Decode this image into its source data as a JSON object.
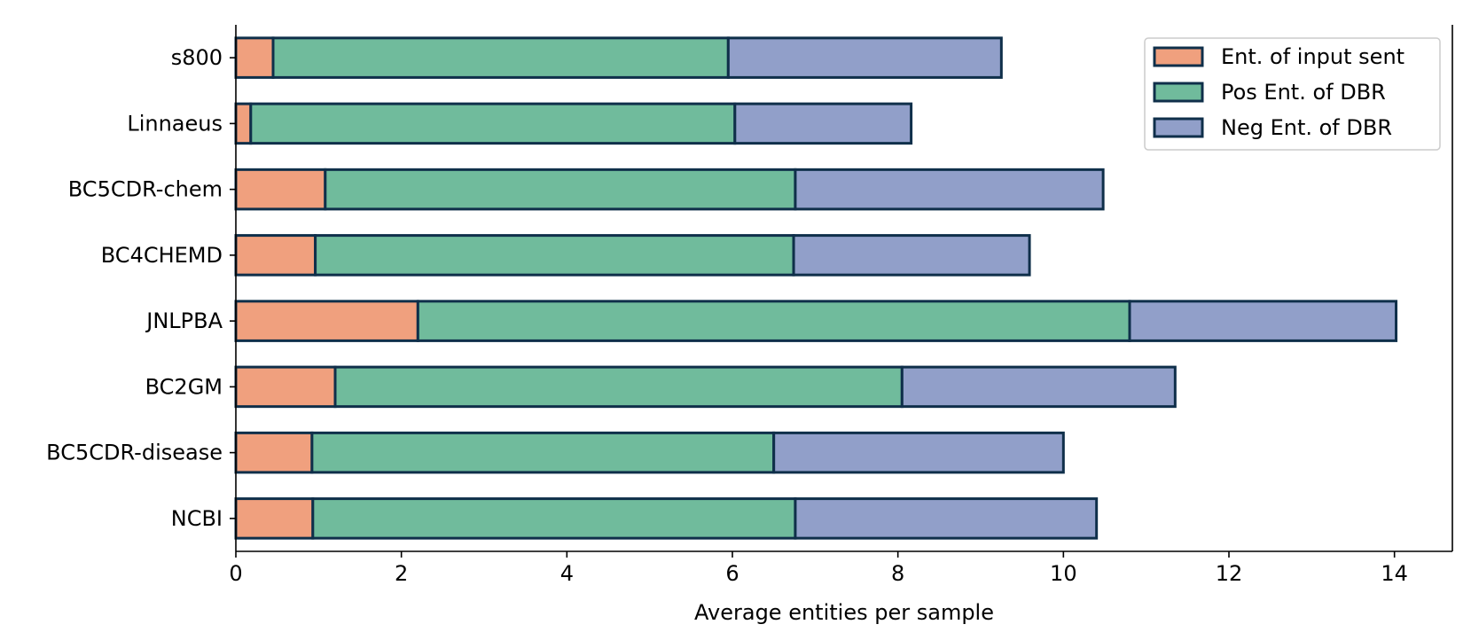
{
  "chart_data": {
    "type": "bar",
    "orientation": "horizontal",
    "stacked": true,
    "title": "",
    "xlabel": "Average entities per sample",
    "ylabel": "",
    "xlim": [
      0,
      14.7
    ],
    "xticks": [
      "0",
      "2",
      "4",
      "6",
      "8",
      "10",
      "12",
      "14"
    ],
    "grid": false,
    "legend_position": "top-right",
    "categories": [
      "s800",
      "Linnaeus",
      "BC5CDR-chem",
      "BC4CHEMD",
      "JNLPBA",
      "BC2GM",
      "BC5CDR-disease",
      "NCBI"
    ],
    "series": [
      {
        "name": "Ent. of input sent",
        "color": "#f0a07e",
        "values": [
          0.45,
          0.18,
          1.08,
          0.96,
          2.2,
          1.2,
          0.92,
          0.93
        ]
      },
      {
        "name": "Pos Ent. of DBR",
        "color": "#70bb9c",
        "values": [
          5.5,
          5.85,
          5.68,
          5.78,
          8.6,
          6.85,
          5.58,
          5.83
        ]
      },
      {
        "name": "Neg Ent. of DBR",
        "color": "#919fc9",
        "values": [
          3.3,
          2.13,
          3.72,
          2.85,
          3.22,
          3.3,
          3.5,
          3.64
        ]
      }
    ],
    "bar_edge_color": "#0f2f4a"
  }
}
